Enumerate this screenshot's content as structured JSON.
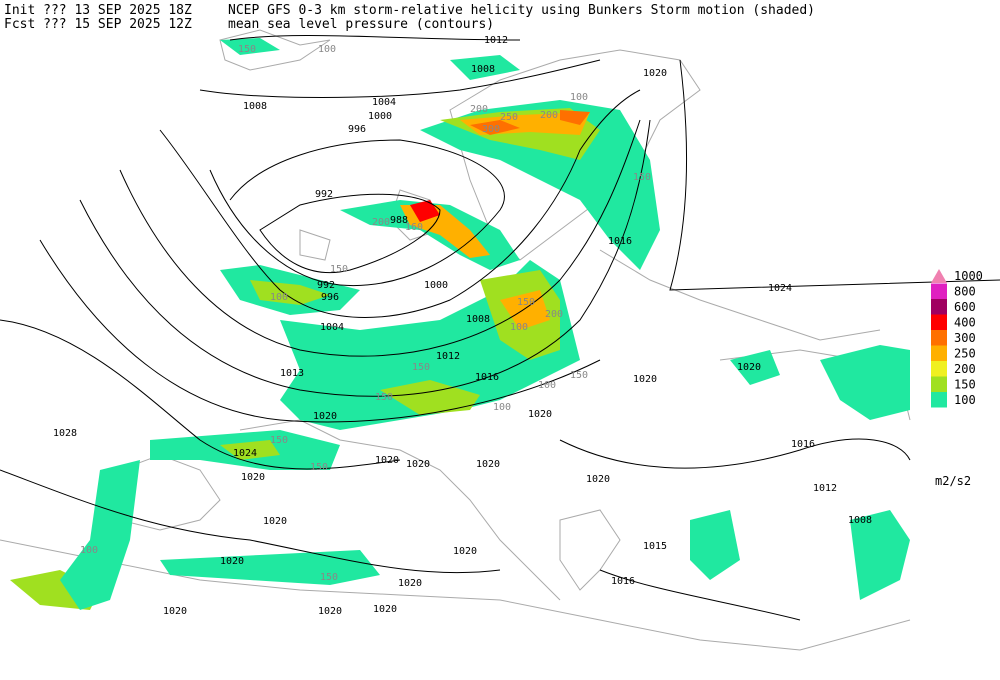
{
  "header": {
    "init": "Init  ??? 13 SEP 2025 18Z",
    "fcst": "Fcst ??? 15 SEP 2025 12Z",
    "title": "NCEP GFS 0-3 km storm-relative helicity using Bunkers Storm motion (shaded)",
    "subtitle": "mean sea level pressure (contours)"
  },
  "legend": {
    "items": [
      {
        "label": "1000",
        "color": "#f080b0"
      },
      {
        "label": "800",
        "color": "#e020c0"
      },
      {
        "label": "600",
        "color": "#a00060"
      },
      {
        "label": "400",
        "color": "#ff0000"
      },
      {
        "label": "300",
        "color": "#ff7000"
      },
      {
        "label": "250",
        "color": "#ffb000"
      },
      {
        "label": "200",
        "color": "#f0f020"
      },
      {
        "label": "150",
        "color": "#a0e020"
      },
      {
        "label": "100",
        "color": "#20e8a0"
      }
    ],
    "units": "m2/s2"
  },
  "contours": {
    "labels": [
      "1012",
      "1008",
      "1004",
      "1000",
      "996",
      "992",
      "988",
      "992",
      "996",
      "1004",
      "1000",
      "1008",
      "1012",
      "1016",
      "1013",
      "1020",
      "1024",
      "1028",
      "1020",
      "1020",
      "1020",
      "1020",
      "1020",
      "1020",
      "1020",
      "1016",
      "1024",
      "1020",
      "1016",
      "1012",
      "1008",
      "1015",
      "1016",
      "1020",
      "1020",
      "1020",
      "1020",
      "1020",
      "1020",
      "1020",
      "1020",
      "1008"
    ]
  },
  "helicity": {
    "labels": [
      "150",
      "100",
      "200",
      "250",
      "300",
      "200",
      "100",
      "150",
      "150",
      "100",
      "160",
      "200",
      "150",
      "200",
      "150",
      "100",
      "150",
      "100",
      "150",
      "100",
      "150",
      "150",
      "100",
      "150"
    ]
  }
}
